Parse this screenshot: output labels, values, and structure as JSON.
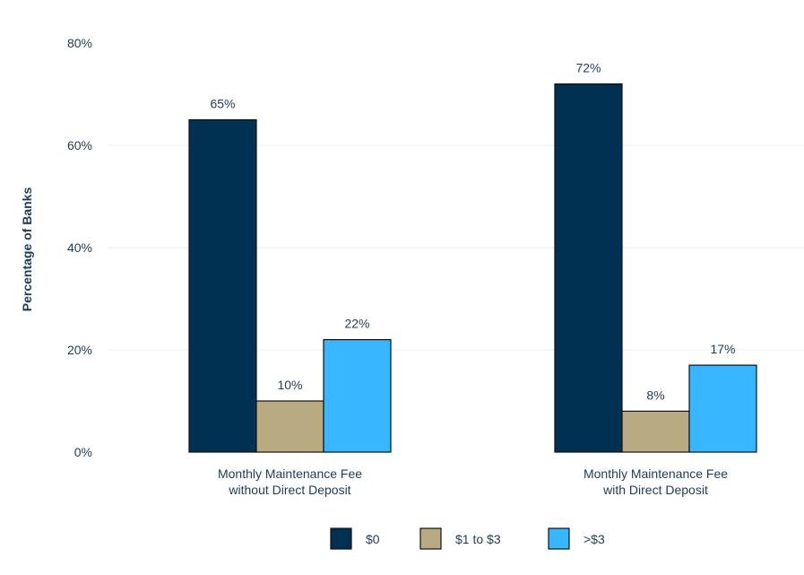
{
  "chart_data": {
    "type": "bar",
    "title": "",
    "xlabel": "",
    "ylabel": "Percentage of Banks",
    "ylim": [
      0,
      80
    ],
    "yticks": [
      0,
      20,
      40,
      60,
      80
    ],
    "ytick_labels": [
      "0%",
      "20%",
      "40%",
      "60%",
      "80%"
    ],
    "categories": [
      [
        "Monthly Maintenance Fee",
        "without Direct Deposit"
      ],
      [
        "Monthly Maintenance Fee",
        "with Direct Deposit"
      ]
    ],
    "series": [
      {
        "name": "$0",
        "values": [
          65,
          72
        ],
        "labels": [
          "65%",
          "72%"
        ]
      },
      {
        "name": "$1 to $3",
        "values": [
          10,
          8
        ],
        "labels": [
          "10%",
          "8%"
        ]
      },
      {
        "name": ">$3",
        "values": [
          22,
          17
        ],
        "labels": [
          "22%",
          "17%"
        ]
      }
    ],
    "legend_position": "bottom",
    "grid": true,
    "colors": [
      "#003152",
      "#b8ab82",
      "#38b6ff"
    ],
    "grid_color": "#e3eef2",
    "text_color": "#1f3b57"
  }
}
